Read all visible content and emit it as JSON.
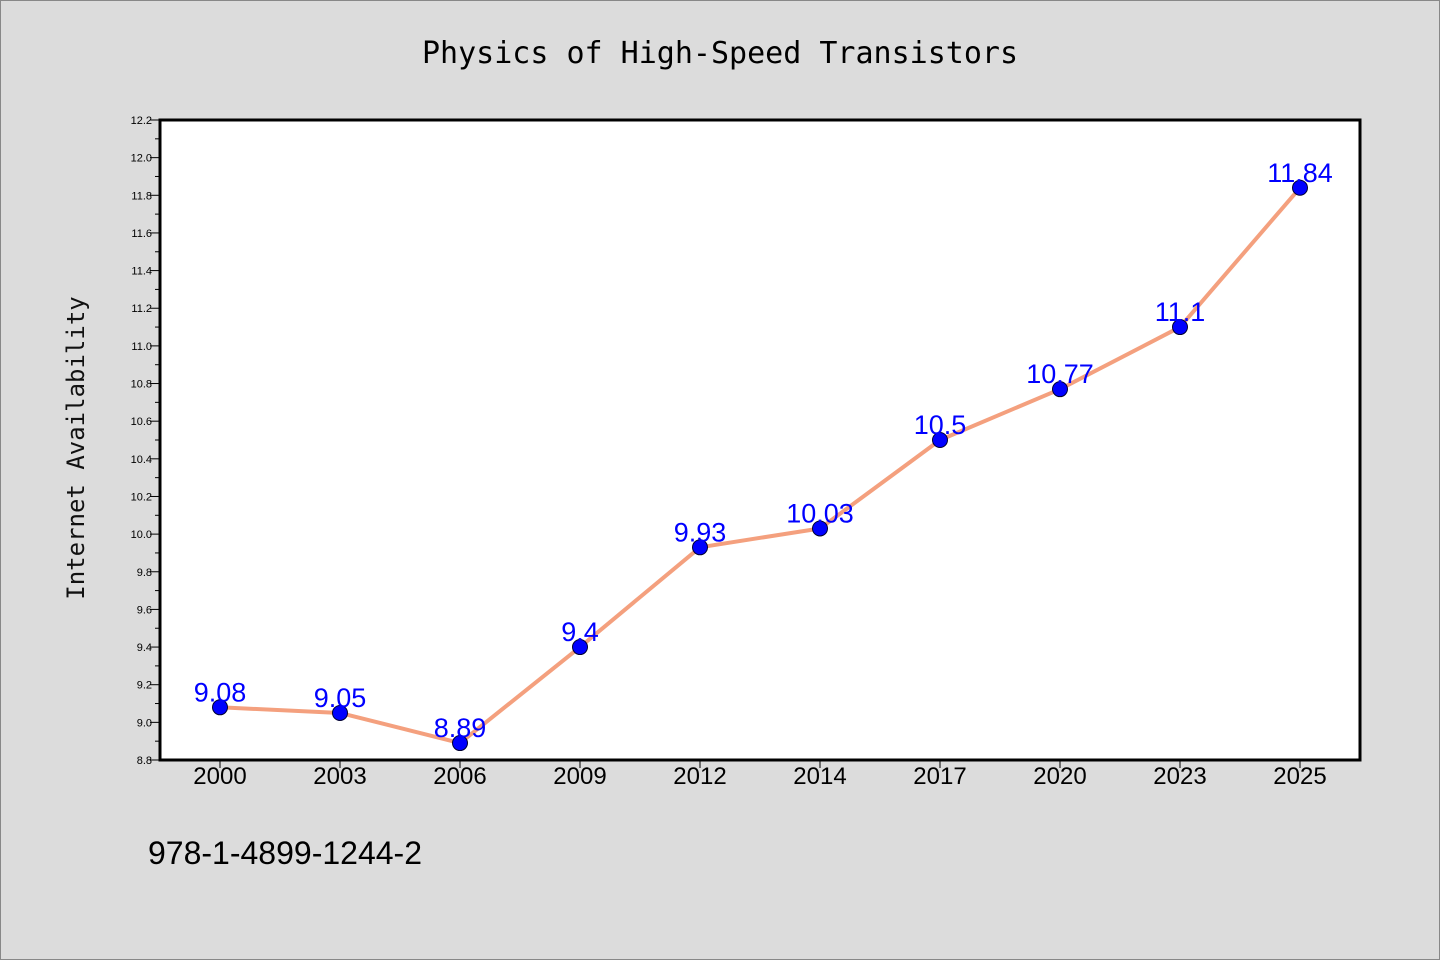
{
  "chart_data": {
    "type": "line",
    "title": "Physics of High-Speed Transistors",
    "xlabel": "",
    "ylabel": "Internet Availability",
    "categories": [
      "2000",
      "2003",
      "2006",
      "2009",
      "2012",
      "2014",
      "2017",
      "2020",
      "2023",
      "2025"
    ],
    "series": [
      {
        "values": [
          9.08,
          9.05,
          8.89,
          9.4,
          9.93,
          10.03,
          10.5,
          10.77,
          11.1,
          11.84
        ]
      }
    ],
    "data_labels": [
      "9.08",
      "9.05",
      "8.89",
      "9.4",
      "9.93",
      "10.03",
      "10.5",
      "10.77",
      "11.1",
      "11.84"
    ],
    "ylim": [
      8.8,
      12.2
    ],
    "yticks": [
      "8.8",
      "9.0",
      "9.2",
      "9.4",
      "9.6",
      "9.8",
      "10.0",
      "10.2",
      "10.4",
      "10.6",
      "10.8",
      "11.0",
      "11.2",
      "11.4",
      "11.6",
      "11.8",
      "12.0",
      "12.2"
    ],
    "grid": false,
    "line_color": "#f4a07e",
    "marker_color": "#0000ff",
    "label_color": "#0000ff"
  },
  "footer": {
    "isbn": "978-1-4899-1244-2"
  }
}
